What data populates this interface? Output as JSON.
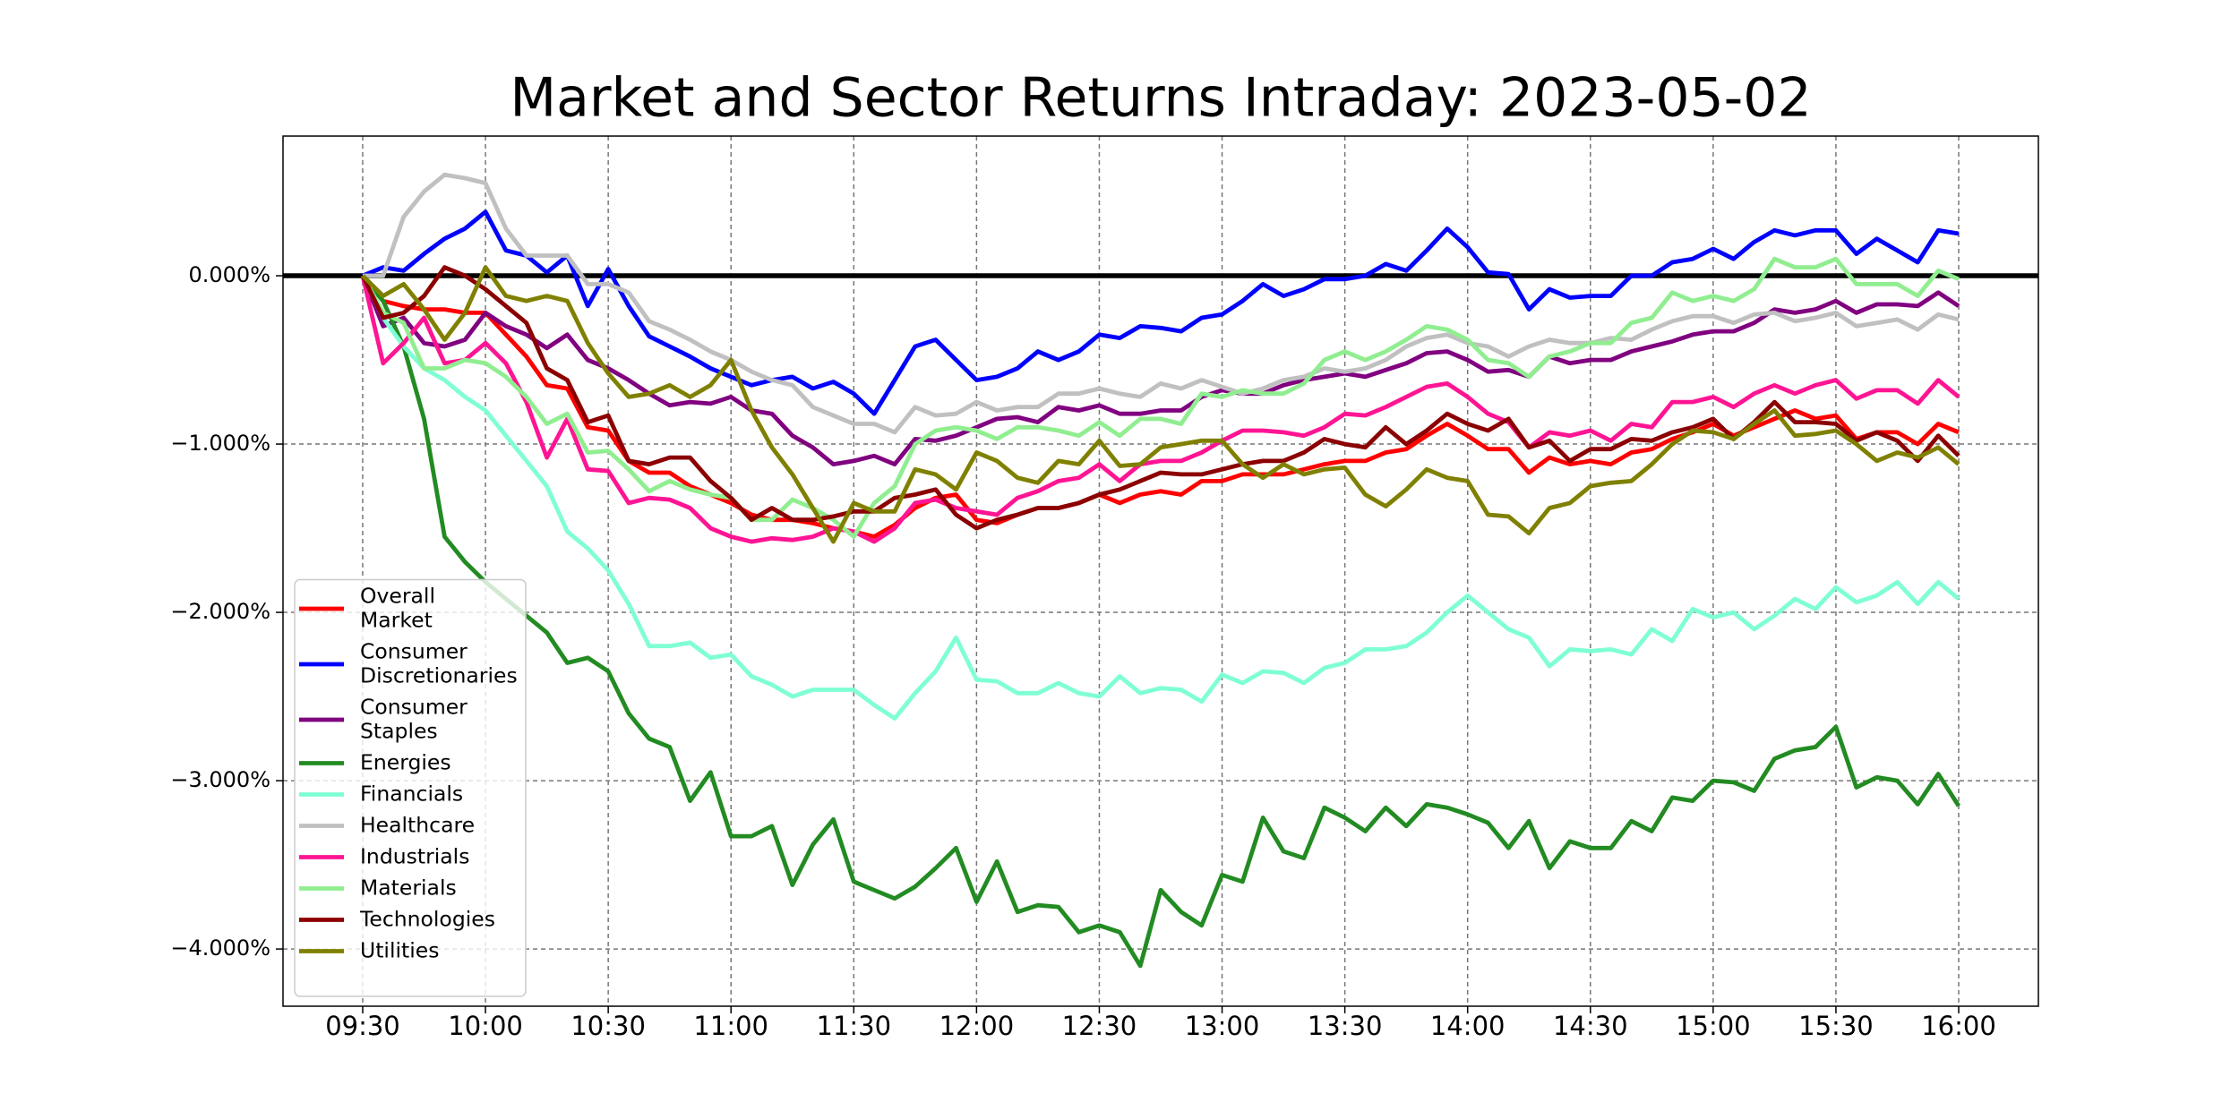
{
  "chart_data": {
    "type": "line",
    "title": "Market and Sector Returns Intraday: 2023-05-02",
    "x": [
      "09:30",
      "09:35",
      "09:40",
      "09:45",
      "09:50",
      "09:55",
      "10:00",
      "10:05",
      "10:10",
      "10:15",
      "10:20",
      "10:25",
      "10:30",
      "10:35",
      "10:40",
      "10:45",
      "10:50",
      "10:55",
      "11:00",
      "11:05",
      "11:10",
      "11:15",
      "11:20",
      "11:25",
      "11:30",
      "11:35",
      "11:40",
      "11:45",
      "11:50",
      "11:55",
      "12:00",
      "12:05",
      "12:10",
      "12:15",
      "12:20",
      "12:25",
      "12:30",
      "12:35",
      "12:40",
      "12:45",
      "12:50",
      "12:55",
      "13:00",
      "13:05",
      "13:10",
      "13:15",
      "13:20",
      "13:25",
      "13:30",
      "13:35",
      "13:40",
      "13:45",
      "13:50",
      "13:55",
      "14:00",
      "14:05",
      "14:10",
      "14:15",
      "14:20",
      "14:25",
      "14:30",
      "14:35",
      "14:40",
      "14:45",
      "14:50",
      "14:55",
      "15:00",
      "15:05",
      "15:10",
      "15:15",
      "15:20",
      "15:25",
      "15:30",
      "15:35",
      "15:40",
      "15:45",
      "15:50",
      "15:55",
      "16:00"
    ],
    "xticks": [
      "09:30",
      "10:00",
      "10:30",
      "11:00",
      "11:30",
      "12:00",
      "12:30",
      "13:00",
      "13:30",
      "14:00",
      "14:30",
      "15:00",
      "15:30",
      "16:00"
    ],
    "ylim": [
      -4.34,
      0.83
    ],
    "yticks": [
      {
        "value": 0,
        "label": "0.000%"
      },
      {
        "value": -1,
        "label": "−1.000%"
      },
      {
        "value": -2,
        "label": "−2.000%"
      },
      {
        "value": -3,
        "label": "−3.000%"
      },
      {
        "value": -4,
        "label": "−4.000%"
      }
    ],
    "grid": true,
    "reference_line": 0,
    "legend": "lower left",
    "series": [
      {
        "name": "Overall\nMarket",
        "color": "#ff0000",
        "values": [
          0,
          -0.15,
          -0.18,
          -0.2,
          -0.2,
          -0.22,
          -0.22,
          -0.35,
          -0.48,
          -0.65,
          -0.67,
          -0.9,
          -0.92,
          -1.1,
          -1.17,
          -1.17,
          -1.25,
          -1.3,
          -1.35,
          -1.42,
          -1.45,
          -1.45,
          -1.47,
          -1.5,
          -1.52,
          -1.55,
          -1.48,
          -1.38,
          -1.32,
          -1.3,
          -1.45,
          -1.47,
          -1.42,
          -1.38,
          -1.38,
          -1.35,
          -1.3,
          -1.35,
          -1.3,
          -1.28,
          -1.3,
          -1.22,
          -1.22,
          -1.18,
          -1.18,
          -1.18,
          -1.15,
          -1.12,
          -1.1,
          -1.1,
          -1.05,
          -1.03,
          -0.95,
          -0.88,
          -0.95,
          -1.03,
          -1.03,
          -1.17,
          -1.08,
          -1.12,
          -1.1,
          -1.12,
          -1.05,
          -1.03,
          -0.97,
          -0.93,
          -0.88,
          -0.95,
          -0.9,
          -0.85,
          -0.8,
          -0.85,
          -0.83,
          -0.97,
          -0.93,
          -0.93,
          -1.0,
          -0.88,
          -0.93
        ]
      },
      {
        "name": "Consumer\nDiscretionaries",
        "color": "#0000ff",
        "values": [
          0,
          0.05,
          0.03,
          0.13,
          0.22,
          0.28,
          0.38,
          0.15,
          0.12,
          0.02,
          0.12,
          -0.18,
          0.04,
          -0.18,
          -0.36,
          -0.42,
          -0.48,
          -0.55,
          -0.6,
          -0.65,
          -0.62,
          -0.6,
          -0.67,
          -0.63,
          -0.7,
          -0.82,
          -0.62,
          -0.42,
          -0.38,
          -0.5,
          -0.62,
          -0.6,
          -0.55,
          -0.45,
          -0.5,
          -0.45,
          -0.35,
          -0.37,
          -0.3,
          -0.31,
          -0.33,
          -0.25,
          -0.23,
          -0.15,
          -0.05,
          -0.12,
          -0.08,
          -0.02,
          -0.02,
          0,
          0.07,
          0.03,
          0.15,
          0.28,
          0.17,
          0.02,
          0.01,
          -0.2,
          -0.08,
          -0.13,
          -0.12,
          -0.12,
          0,
          0,
          0.08,
          0.1,
          0.16,
          0.1,
          0.2,
          0.27,
          0.24,
          0.27,
          0.27,
          0.13,
          0.22,
          0.15,
          0.08,
          0.27,
          0.25
        ]
      },
      {
        "name": "Consumer\nStaples",
        "color": "#800080",
        "values": [
          0,
          -0.3,
          -0.25,
          -0.4,
          -0.42,
          -0.38,
          -0.22,
          -0.3,
          -0.35,
          -0.43,
          -0.35,
          -0.5,
          -0.55,
          -0.62,
          -0.7,
          -0.77,
          -0.75,
          -0.76,
          -0.72,
          -0.8,
          -0.82,
          -0.95,
          -1.02,
          -1.12,
          -1.1,
          -1.07,
          -1.12,
          -0.97,
          -0.98,
          -0.95,
          -0.9,
          -0.85,
          -0.84,
          -0.87,
          -0.78,
          -0.8,
          -0.77,
          -0.82,
          -0.82,
          -0.8,
          -0.8,
          -0.72,
          -0.68,
          -0.7,
          -0.7,
          -0.65,
          -0.62,
          -0.6,
          -0.58,
          -0.6,
          -0.56,
          -0.52,
          -0.46,
          -0.45,
          -0.5,
          -0.57,
          -0.56,
          -0.6,
          -0.48,
          -0.52,
          -0.5,
          -0.5,
          -0.45,
          -0.42,
          -0.39,
          -0.35,
          -0.33,
          -0.33,
          -0.28,
          -0.2,
          -0.22,
          -0.2,
          -0.15,
          -0.22,
          -0.17,
          -0.17,
          -0.18,
          -0.1,
          -0.18
        ]
      },
      {
        "name": "Energies",
        "color": "#228b22",
        "values": [
          0,
          -0.15,
          -0.42,
          -0.85,
          -1.55,
          -1.7,
          -1.82,
          -1.92,
          -2.02,
          -2.12,
          -2.3,
          -2.27,
          -2.35,
          -2.6,
          -2.75,
          -2.8,
          -3.12,
          -2.95,
          -3.33,
          -3.33,
          -3.27,
          -3.62,
          -3.38,
          -3.23,
          -3.6,
          -3.65,
          -3.7,
          -3.63,
          -3.52,
          -3.4,
          -3.72,
          -3.48,
          -3.78,
          -3.74,
          -3.75,
          -3.9,
          -3.86,
          -3.9,
          -4.1,
          -3.65,
          -3.78,
          -3.86,
          -3.56,
          -3.6,
          -3.22,
          -3.42,
          -3.46,
          -3.16,
          -3.22,
          -3.3,
          -3.16,
          -3.27,
          -3.14,
          -3.16,
          -3.2,
          -3.25,
          -3.4,
          -3.24,
          -3.52,
          -3.36,
          -3.4,
          -3.4,
          -3.24,
          -3.3,
          -3.1,
          -3.12,
          -3.0,
          -3.01,
          -3.06,
          -2.87,
          -2.82,
          -2.8,
          -2.68,
          -3.04,
          -2.98,
          -3.0,
          -3.14,
          -2.96,
          -3.15
        ]
      },
      {
        "name": "Financials",
        "color": "#7fffd4",
        "values": [
          0,
          -0.25,
          -0.42,
          -0.55,
          -0.62,
          -0.72,
          -0.8,
          -0.95,
          -1.1,
          -1.25,
          -1.52,
          -1.62,
          -1.75,
          -1.95,
          -2.2,
          -2.2,
          -2.18,
          -2.27,
          -2.25,
          -2.38,
          -2.43,
          -2.5,
          -2.46,
          -2.46,
          -2.46,
          -2.55,
          -2.63,
          -2.48,
          -2.35,
          -2.15,
          -2.4,
          -2.41,
          -2.48,
          -2.48,
          -2.42,
          -2.48,
          -2.5,
          -2.38,
          -2.48,
          -2.45,
          -2.46,
          -2.53,
          -2.37,
          -2.42,
          -2.35,
          -2.36,
          -2.42,
          -2.33,
          -2.3,
          -2.22,
          -2.22,
          -2.2,
          -2.12,
          -2.0,
          -1.9,
          -2.0,
          -2.1,
          -2.15,
          -2.32,
          -2.22,
          -2.23,
          -2.22,
          -2.25,
          -2.1,
          -2.17,
          -1.98,
          -2.03,
          -2.0,
          -2.1,
          -2.02,
          -1.92,
          -1.98,
          -1.85,
          -1.94,
          -1.9,
          -1.82,
          -1.95,
          -1.82,
          -1.92
        ]
      },
      {
        "name": "Healthcare",
        "color": "#c0c0c0",
        "values": [
          0,
          0.0,
          0.35,
          0.5,
          0.6,
          0.58,
          0.55,
          0.28,
          0.12,
          0.12,
          0.12,
          -0.05,
          -0.05,
          -0.1,
          -0.27,
          -0.32,
          -0.38,
          -0.45,
          -0.5,
          -0.57,
          -0.62,
          -0.65,
          -0.78,
          -0.83,
          -0.88,
          -0.88,
          -0.93,
          -0.78,
          -0.83,
          -0.82,
          -0.75,
          -0.8,
          -0.78,
          -0.78,
          -0.7,
          -0.7,
          -0.67,
          -0.7,
          -0.72,
          -0.64,
          -0.67,
          -0.62,
          -0.66,
          -0.7,
          -0.67,
          -0.62,
          -0.6,
          -0.55,
          -0.57,
          -0.55,
          -0.5,
          -0.42,
          -0.37,
          -0.35,
          -0.4,
          -0.42,
          -0.48,
          -0.42,
          -0.38,
          -0.4,
          -0.4,
          -0.37,
          -0.38,
          -0.32,
          -0.27,
          -0.24,
          -0.24,
          -0.28,
          -0.23,
          -0.22,
          -0.27,
          -0.25,
          -0.22,
          -0.3,
          -0.28,
          -0.26,
          -0.32,
          -0.23,
          -0.26
        ]
      },
      {
        "name": "Industrials",
        "color": "#ff1493",
        "values": [
          0,
          -0.52,
          -0.4,
          -0.25,
          -0.52,
          -0.5,
          -0.4,
          -0.52,
          -0.75,
          -1.08,
          -0.85,
          -1.15,
          -1.16,
          -1.35,
          -1.32,
          -1.33,
          -1.38,
          -1.5,
          -1.55,
          -1.58,
          -1.56,
          -1.57,
          -1.55,
          -1.5,
          -1.52,
          -1.58,
          -1.5,
          -1.35,
          -1.33,
          -1.38,
          -1.4,
          -1.42,
          -1.32,
          -1.28,
          -1.22,
          -1.2,
          -1.12,
          -1.22,
          -1.12,
          -1.1,
          -1.1,
          -1.05,
          -0.98,
          -0.92,
          -0.92,
          -0.93,
          -0.95,
          -0.9,
          -0.82,
          -0.83,
          -0.78,
          -0.72,
          -0.66,
          -0.64,
          -0.72,
          -0.82,
          -0.87,
          -1.02,
          -0.93,
          -0.95,
          -0.92,
          -0.98,
          -0.88,
          -0.9,
          -0.75,
          -0.75,
          -0.72,
          -0.78,
          -0.7,
          -0.65,
          -0.7,
          -0.65,
          -0.62,
          -0.73,
          -0.68,
          -0.68,
          -0.76,
          -0.62,
          -0.72
        ]
      },
      {
        "name": "Materials",
        "color": "#90ee90",
        "values": [
          0,
          -0.22,
          -0.28,
          -0.55,
          -0.55,
          -0.5,
          -0.52,
          -0.6,
          -0.72,
          -0.88,
          -0.82,
          -1.05,
          -1.04,
          -1.15,
          -1.28,
          -1.22,
          -1.27,
          -1.3,
          -1.32,
          -1.45,
          -1.45,
          -1.33,
          -1.38,
          -1.45,
          -1.55,
          -1.35,
          -1.25,
          -1.0,
          -0.92,
          -0.9,
          -0.92,
          -0.97,
          -0.9,
          -0.9,
          -0.92,
          -0.95,
          -0.87,
          -0.95,
          -0.85,
          -0.85,
          -0.88,
          -0.7,
          -0.72,
          -0.68,
          -0.7,
          -0.7,
          -0.64,
          -0.5,
          -0.45,
          -0.5,
          -0.45,
          -0.38,
          -0.3,
          -0.32,
          -0.38,
          -0.5,
          -0.52,
          -0.6,
          -0.48,
          -0.45,
          -0.4,
          -0.4,
          -0.28,
          -0.25,
          -0.1,
          -0.15,
          -0.12,
          -0.15,
          -0.08,
          0.1,
          0.05,
          0.05,
          0.1,
          -0.05,
          -0.05,
          -0.05,
          -0.12,
          0.03,
          -0.02
        ]
      },
      {
        "name": "Technologies",
        "color": "#8b0000",
        "values": [
          0,
          -0.25,
          -0.22,
          -0.12,
          0.05,
          0.0,
          -0.08,
          -0.18,
          -0.28,
          -0.55,
          -0.62,
          -0.87,
          -0.83,
          -1.1,
          -1.12,
          -1.08,
          -1.08,
          -1.22,
          -1.32,
          -1.45,
          -1.38,
          -1.45,
          -1.45,
          -1.43,
          -1.4,
          -1.4,
          -1.32,
          -1.3,
          -1.27,
          -1.42,
          -1.5,
          -1.45,
          -1.42,
          -1.38,
          -1.38,
          -1.35,
          -1.3,
          -1.27,
          -1.22,
          -1.17,
          -1.18,
          -1.18,
          -1.15,
          -1.12,
          -1.1,
          -1.1,
          -1.05,
          -0.97,
          -1.0,
          -1.02,
          -0.9,
          -1.0,
          -0.92,
          -0.82,
          -0.88,
          -0.92,
          -0.85,
          -1.02,
          -0.98,
          -1.1,
          -1.03,
          -1.03,
          -0.97,
          -0.98,
          -0.93,
          -0.9,
          -0.85,
          -0.97,
          -0.87,
          -0.75,
          -0.87,
          -0.87,
          -0.88,
          -0.98,
          -0.93,
          -0.98,
          -1.1,
          -0.95,
          -1.07
        ]
      },
      {
        "name": "Utilities",
        "color": "#808000",
        "values": [
          0,
          -0.12,
          -0.05,
          -0.2,
          -0.38,
          -0.22,
          0.05,
          -0.12,
          -0.15,
          -0.12,
          -0.15,
          -0.4,
          -0.58,
          -0.72,
          -0.7,
          -0.65,
          -0.72,
          -0.65,
          -0.5,
          -0.8,
          -1.02,
          -1.18,
          -1.38,
          -1.58,
          -1.35,
          -1.4,
          -1.4,
          -1.15,
          -1.18,
          -1.27,
          -1.05,
          -1.1,
          -1.2,
          -1.23,
          -1.1,
          -1.12,
          -0.98,
          -1.13,
          -1.12,
          -1.02,
          -1.0,
          -0.98,
          -0.98,
          -1.12,
          -1.2,
          -1.12,
          -1.18,
          -1.15,
          -1.14,
          -1.3,
          -1.37,
          -1.27,
          -1.15,
          -1.2,
          -1.22,
          -1.42,
          -1.43,
          -1.53,
          -1.38,
          -1.35,
          -1.25,
          -1.23,
          -1.22,
          -1.12,
          -1.0,
          -0.92,
          -0.93,
          -0.97,
          -0.88,
          -0.8,
          -0.95,
          -0.94,
          -0.92,
          -1.0,
          -1.1,
          -1.05,
          -1.08,
          -1.02,
          -1.12
        ]
      }
    ]
  }
}
